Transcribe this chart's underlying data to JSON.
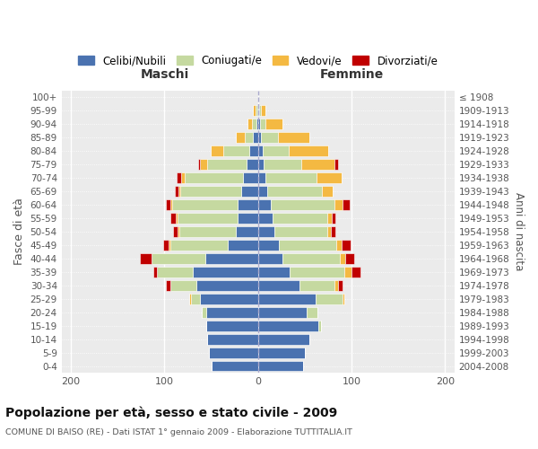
{
  "age_groups": [
    "0-4",
    "5-9",
    "10-14",
    "15-19",
    "20-24",
    "25-29",
    "30-34",
    "35-39",
    "40-44",
    "45-49",
    "50-54",
    "55-59",
    "60-64",
    "65-69",
    "70-74",
    "75-79",
    "80-84",
    "85-89",
    "90-94",
    "95-99",
    "100+"
  ],
  "birth_years": [
    "2004-2008",
    "1999-2003",
    "1994-1998",
    "1989-1993",
    "1984-1988",
    "1979-1983",
    "1974-1978",
    "1969-1973",
    "1964-1968",
    "1959-1963",
    "1954-1958",
    "1949-1953",
    "1944-1948",
    "1939-1943",
    "1934-1938",
    "1929-1933",
    "1924-1928",
    "1919-1923",
    "1914-1918",
    "1909-1913",
    "≤ 1908"
  ],
  "maschi": {
    "celibi": [
      50,
      52,
      54,
      55,
      55,
      62,
      66,
      70,
      56,
      32,
      24,
      22,
      22,
      18,
      16,
      12,
      9,
      5,
      2,
      1,
      0
    ],
    "coniugati": [
      0,
      0,
      0,
      0,
      5,
      10,
      28,
      38,
      58,
      62,
      60,
      64,
      70,
      65,
      62,
      42,
      28,
      9,
      4,
      2,
      0
    ],
    "vedovi": [
      0,
      0,
      0,
      0,
      0,
      2,
      0,
      0,
      0,
      2,
      2,
      2,
      2,
      2,
      4,
      8,
      14,
      10,
      5,
      2,
      0
    ],
    "divorziati": [
      0,
      0,
      0,
      0,
      0,
      0,
      4,
      4,
      12,
      5,
      5,
      6,
      4,
      4,
      5,
      2,
      0,
      0,
      0,
      0,
      0
    ]
  },
  "femmine": {
    "nubili": [
      48,
      50,
      55,
      65,
      52,
      62,
      44,
      34,
      26,
      22,
      18,
      16,
      14,
      10,
      8,
      6,
      5,
      3,
      2,
      1,
      0
    ],
    "coniugate": [
      0,
      0,
      0,
      2,
      12,
      28,
      38,
      58,
      62,
      62,
      56,
      58,
      68,
      58,
      55,
      40,
      28,
      18,
      6,
      2,
      0
    ],
    "vedove": [
      0,
      0,
      0,
      0,
      0,
      2,
      4,
      8,
      5,
      5,
      4,
      5,
      8,
      12,
      26,
      36,
      42,
      34,
      18,
      5,
      0
    ],
    "divorziate": [
      0,
      0,
      0,
      0,
      0,
      0,
      4,
      10,
      10,
      10,
      5,
      4,
      8,
      0,
      0,
      4,
      0,
      0,
      0,
      0,
      0
    ]
  },
  "colors": {
    "celibi": "#4a72b0",
    "coniugati": "#c5d9a0",
    "vedovi": "#f4b942",
    "divorziati": "#c00000"
  },
  "xlim": [
    -210,
    210
  ],
  "xticks": [
    -200,
    -100,
    0,
    100,
    200
  ],
  "xticklabels": [
    "200",
    "100",
    "0",
    "100",
    "200"
  ],
  "title": "Popolazione per età, sesso e stato civile - 2009",
  "subtitle": "COMUNE DI BAISO (RE) - Dati ISTAT 1° gennaio 2009 - Elaborazione TUTTITALIA.IT",
  "ylabel_left": "Fasce di età",
  "ylabel_right": "Anni di nascita",
  "label_maschi": "Maschi",
  "label_femmine": "Femmine",
  "legend_labels": [
    "Celibi/Nubili",
    "Coniugati/e",
    "Vedovi/e",
    "Divorziati/e"
  ],
  "bg_color": "#ffffff",
  "plot_bg": "#ebebeb"
}
